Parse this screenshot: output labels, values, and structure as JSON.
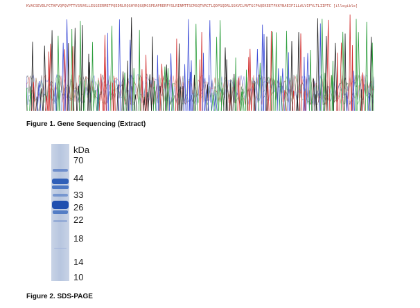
{
  "figure1": {
    "sequence": "KVACSEVDLPCTAFVQPQVPTTVSRVKLLEGGEERMETPQEDRLRQGHYRQGQMGSPDAPRERFYSLRINMTTSCMSQTVRCTLQDPGQDRLSGKVILMVTGCPAQEKEETFKKYNAEIFILLALVIFYLTLIIPTC [illegible]",
    "caption": "Figure 1. Gene Sequencing (Extract)"
  },
  "figure2": {
    "caption": "Figure 2. SDS-PAGE",
    "unit": "kDa",
    "markers": [
      "70",
      "44",
      "33",
      "26",
      "22",
      "18",
      "14",
      "10"
    ]
  }
}
